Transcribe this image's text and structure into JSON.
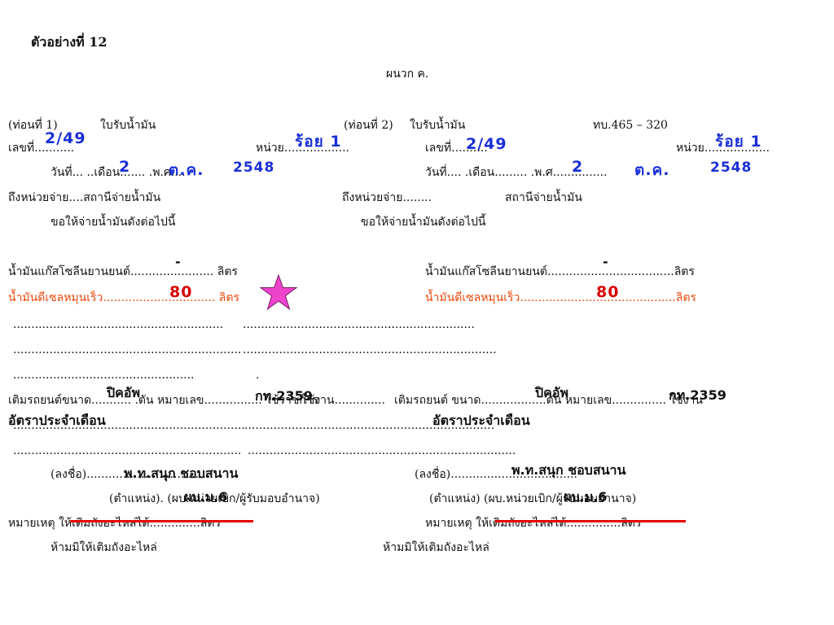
{
  "heading": {
    "example": "ตัวอย่างที่ 12",
    "appendix": "ผนวก ค."
  },
  "left": {
    "part": "(ท่อนที่ 1)",
    "title": "ใบรับน้ำมัน",
    "no_line": "เลขที่...........",
    "unit_line": "หน่วย..................",
    "date_line": "วันที่...   ..เดือน.......  .พ.ศ....",
    "pay_line": "ถึงหน่วยจ่าย....สถานีจ่ายน้ำมัน",
    "order": "ขอให้จ่ายน้ำมันดังต่อไปนี้",
    "gas_line": "น้ำมันแก๊สโซลีนยานยนต์....................... ลิตร",
    "diesel_line": "น้ำมันดีเซลหมุนเร็ว............................... ลิตร",
    "blank1": "..........................................................",
    "blank2": "...............................................................",
    "blank3": "..................................................",
    "refuel_line": "เติมรถยนต์ขนาด...........  .ตัน หมายเลข................  ใช้ราชการ",
    "line_a": "................................................................",
    "line_b": "...............................................................",
    "sign_line": "(ลงชื่อ)...................................",
    "position_line": "(ตำแหน่ง).     (ผบ.หน่วยเบิก/ผู้รับมอบอำนาจ)",
    "note_line": "หมายเหตุ  ให้เติมถังอะไหล่ได้..............ลิตร",
    "prohibit": "ห้ามมิให้เติมถังอะไหล่"
  },
  "middle": {
    "blank1": "..........................................",
    "blank1b": "........................",
    "blank2": "......................................................................",
    "blank3": ".",
    "refuel_tail": "ใช้งาน..............",
    "line_a": ".....................................................................",
    "line_b": ".........................................................................."
  },
  "right": {
    "part": "(ท่อนที่ 2)",
    "title": "ใบรับน้ำมัน",
    "form_code": "ทบ.465 – 320",
    "no_line": "เลขที่..........",
    "unit_line": "หน่วย..................",
    "date_line": "วันที่....     .เดือน.........    .พ.ศ...............",
    "pay_line": "ถึงหน่วยจ่าย........",
    "station": "สถานีจ่ายน้ำมัน",
    "order": "ขอให้จ่ายน้ำมันดังต่อไปนี้",
    "gas_line": "น้ำมันแก๊สโซลีนยานยนต์...................................ลิตร",
    "diesel_line": "น้ำมันดีเซลหมุนเร็ว...........................................ลิตร",
    "refuel_line": "เติมรถยนต์ ขนาด..................ตัน หมายเลข...............   ใช้งาน",
    "sign_line": "(ลงชื่อ)...................................",
    "position_line": "(ตำแหน่ง)          (ผบ.หน่วยเบิก/ผู้รับมอบอำนาจ)",
    "note_line": "หมายเหตุ  ให้เติมถังอะไหล่ได้...............ลิตร",
    "prohibit": "ห้ามมิให้เติมถังอะไหล่"
  },
  "fill_left": {
    "no": "2/49",
    "unit": "ร้อย 1",
    "day": "2",
    "month": "ต.ค.",
    "year": "2548",
    "gas": "-",
    "diesel": "80",
    "vehicle": "ปิคอัพ",
    "plate": "กท.2359",
    "usage": "อัตราประจำเดือน",
    "signer": "พ.ท.สนุก ชอบสนาน",
    "position": "ผบ.ม.6"
  },
  "fill_right": {
    "no": "2/49",
    "unit": "ร้อย 1",
    "day": "2",
    "month": "ต.ค.",
    "year": "2548",
    "gas": "-",
    "diesel": "80",
    "vehicle": "ปิคอัพ",
    "plate": "กท.2359",
    "usage": "อัตราประจำเดือน",
    "signer": "พ.ท.สนุก ชอบสนาน",
    "position": "ผบ.ม.6"
  },
  "colors": {
    "handwriting": "#1a2fd6",
    "diesel_text": "#e8480a",
    "strike": "#e60000",
    "star": "#ee44cc"
  },
  "icons": {
    "star": "star-icon"
  }
}
